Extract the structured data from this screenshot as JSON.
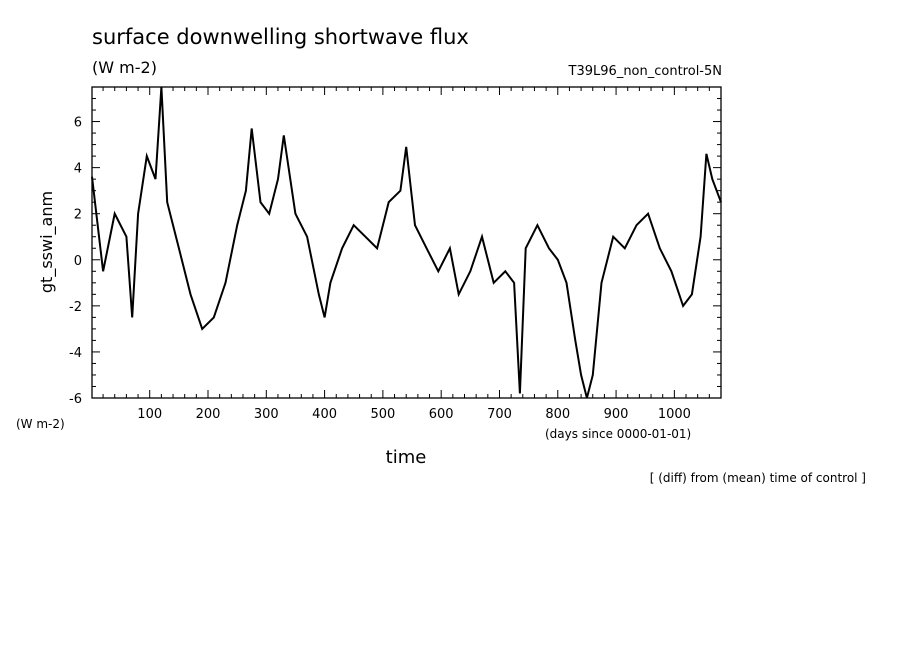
{
  "chart_data": {
    "type": "line",
    "title": "surface downwelling shortwave flux",
    "units": "(W m-2)",
    "run_name": "T39L96_non_control-5N",
    "ylabel": "gt_sswi_anm",
    "yunits": "(W m-2)",
    "xlabel": "time",
    "xunits": "(days since 0000-01-01)",
    "note": "[ (diff) from (mean) time of control ]",
    "xlim": [
      1,
      1080
    ],
    "ylim": [
      -6,
      7.5
    ],
    "xticks": [
      100,
      200,
      300,
      400,
      500,
      600,
      700,
      800,
      900,
      1000
    ],
    "xtick_labels": [
      "100",
      "200",
      "300",
      "400",
      "500",
      "600",
      "700",
      "800",
      "900",
      "1000"
    ],
    "yticks": [
      -6,
      -4,
      -2,
      0,
      2,
      4,
      6
    ],
    "ytick_labels": [
      "-6",
      "-4",
      "-2",
      "0",
      "2",
      "4",
      "6"
    ],
    "grid": false,
    "series": [
      {
        "color": "#000000",
        "x": [
          1,
          20,
          40,
          60,
          70,
          80,
          95,
          110,
          120,
          130,
          150,
          170,
          190,
          210,
          230,
          250,
          265,
          275,
          290,
          305,
          320,
          330,
          350,
          370,
          390,
          400,
          410,
          430,
          450,
          470,
          490,
          510,
          530,
          540,
          555,
          575,
          595,
          615,
          630,
          650,
          670,
          690,
          710,
          725,
          735,
          745,
          765,
          785,
          800,
          815,
          830,
          840,
          850,
          860,
          875,
          895,
          915,
          935,
          955,
          975,
          995,
          1015,
          1030,
          1045,
          1055,
          1065,
          1080
        ],
        "y": [
          3.6,
          -0.5,
          2.0,
          1.0,
          -2.5,
          2.0,
          4.5,
          3.5,
          7.5,
          2.5,
          0.5,
          -1.5,
          -3.0,
          -2.5,
          -1.0,
          1.5,
          3.0,
          5.7,
          2.5,
          2.0,
          3.5,
          5.4,
          2.0,
          1.0,
          -1.5,
          -2.5,
          -1.0,
          0.5,
          1.5,
          1.0,
          0.5,
          2.5,
          3.0,
          4.9,
          1.5,
          0.5,
          -0.5,
          0.5,
          -1.5,
          -0.5,
          1.0,
          -1.0,
          -0.5,
          -1.0,
          -5.8,
          0.5,
          1.5,
          0.5,
          0.0,
          -1.0,
          -3.5,
          -5.0,
          -6.0,
          -5.0,
          -1.0,
          1.0,
          0.5,
          1.5,
          2.0,
          0.5,
          -0.5,
          -2.0,
          -1.5,
          1.0,
          4.6,
          3.5,
          2.5
        ]
      }
    ]
  }
}
